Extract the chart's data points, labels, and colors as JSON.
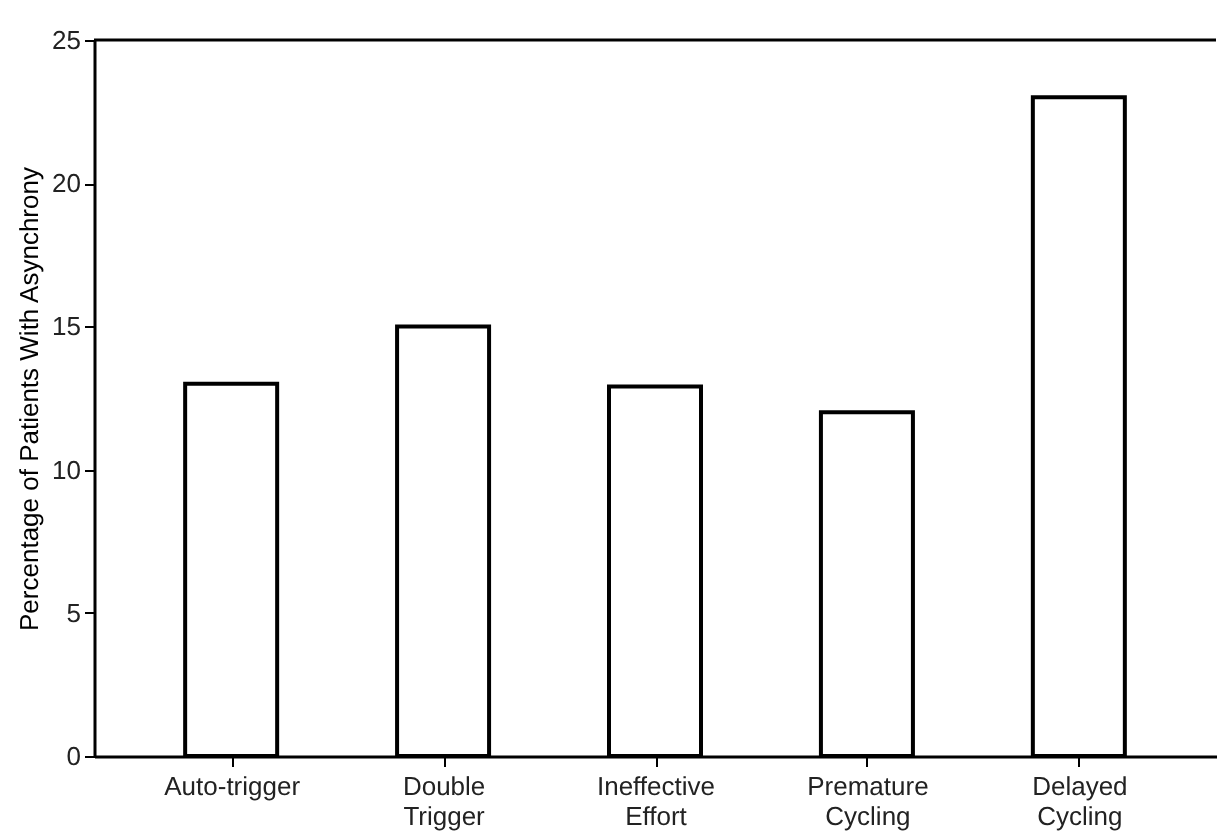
{
  "chart_data": {
    "type": "bar",
    "ylabel": "Percentage of Patients With Asynchrony",
    "categories": [
      "Auto-trigger",
      "Double Trigger",
      "Ineffective Effort",
      "Premature Cycling",
      "Delayed Cycling"
    ],
    "values": [
      13,
      15,
      12.9,
      12,
      23
    ],
    "color": "#ffffff",
    "ylim": [
      0,
      25
    ],
    "yticks": [
      0,
      5,
      10,
      15,
      20,
      25
    ],
    "grid": false
  }
}
